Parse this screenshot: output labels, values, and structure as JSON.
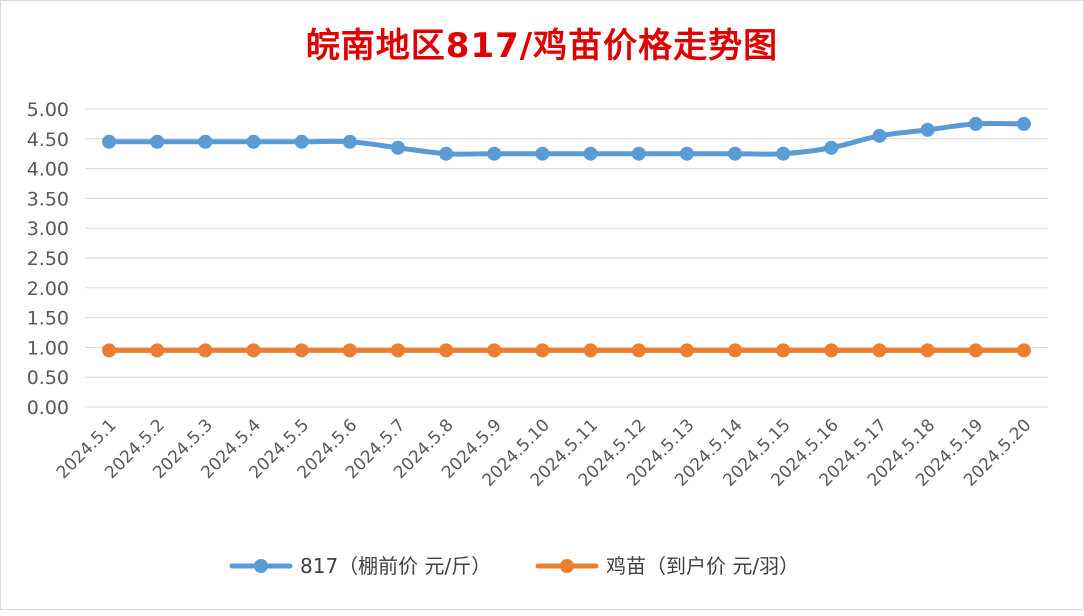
{
  "chart_data": {
    "type": "line",
    "title": "皖南地区817/鸡苗价格走势图",
    "categories": [
      "2024.5.1",
      "2024.5.2",
      "2024.5.3",
      "2024.5.4",
      "2024.5.5",
      "2024.5.6",
      "2024.5.7",
      "2024.5.8",
      "2024.5.9",
      "2024.5.10",
      "2024.5.11",
      "2024.5.12",
      "2024.5.13",
      "2024.5.14",
      "2024.5.15",
      "2024.5.16",
      "2024.5.17",
      "2024.5.18",
      "2024.5.19",
      "2024.5.20"
    ],
    "series": [
      {
        "name": "817（棚前价 元/斤）",
        "color": "#5b9bd5",
        "values": [
          4.45,
          4.45,
          4.45,
          4.45,
          4.45,
          4.45,
          4.35,
          4.25,
          4.25,
          4.25,
          4.25,
          4.25,
          4.25,
          4.25,
          4.25,
          4.35,
          4.55,
          4.65,
          4.75,
          4.75
        ]
      },
      {
        "name": "鸡苗（到户价 元/羽）",
        "color": "#ed7d31",
        "values": [
          0.95,
          0.95,
          0.95,
          0.95,
          0.95,
          0.95,
          0.95,
          0.95,
          0.95,
          0.95,
          0.95,
          0.95,
          0.95,
          0.95,
          0.95,
          0.95,
          0.95,
          0.95,
          0.95,
          0.95
        ]
      }
    ],
    "y_ticks": [
      "0.00",
      "0.50",
      "1.00",
      "1.50",
      "2.00",
      "2.50",
      "3.00",
      "3.50",
      "4.00",
      "4.50",
      "5.00"
    ],
    "ylim": [
      0,
      5
    ],
    "grid": true,
    "legend_position": "bottom"
  }
}
